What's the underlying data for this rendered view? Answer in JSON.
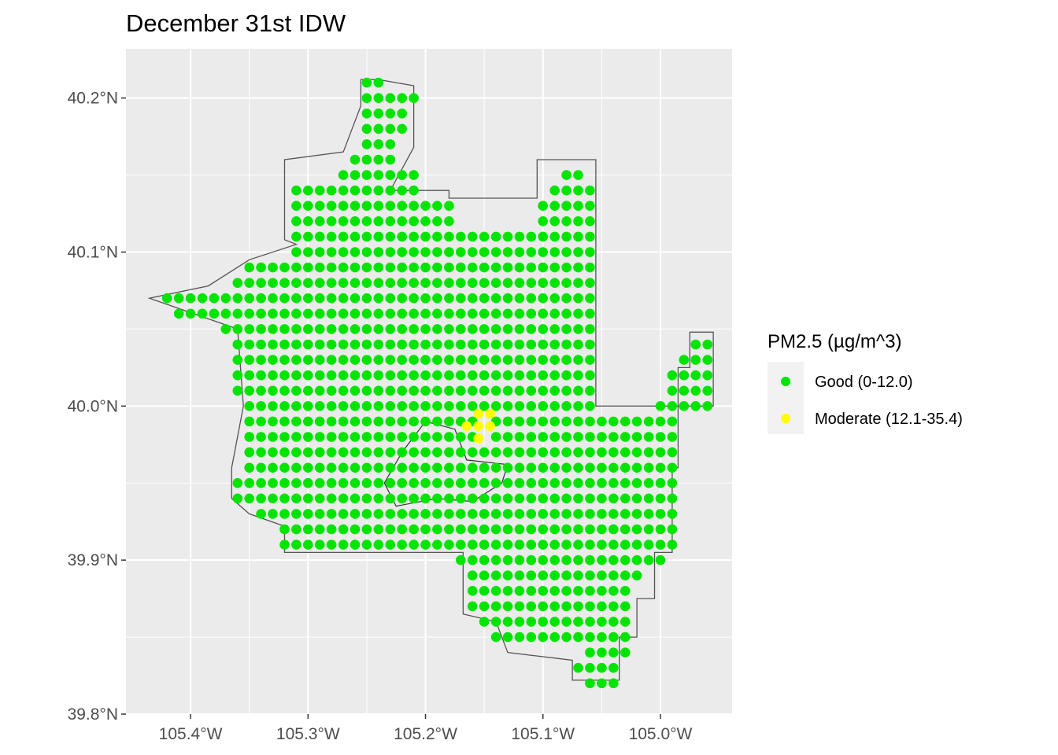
{
  "chart_data": {
    "type": "scatter",
    "title": "December 31st IDW",
    "xlabel": "",
    "ylabel": "",
    "xlim": [
      -105.455,
      -104.939
    ],
    "ylim": [
      39.8,
      40.232
    ],
    "x_ticks": [
      {
        "value": -105.4,
        "label": "105.4°W"
      },
      {
        "value": -105.3,
        "label": "105.3°W"
      },
      {
        "value": -105.2,
        "label": "105.2°W"
      },
      {
        "value": -105.1,
        "label": "105.1°W"
      },
      {
        "value": -105.0,
        "label": "105.0°W"
      }
    ],
    "y_ticks": [
      {
        "value": 39.8,
        "label": "39.8°N"
      },
      {
        "value": 39.9,
        "label": "39.9°N"
      },
      {
        "value": 40.0,
        "label": "40.0°N"
      },
      {
        "value": 40.1,
        "label": "40.1°N"
      },
      {
        "value": 40.2,
        "label": "40.2°N"
      }
    ],
    "grid": true,
    "grid_spacing_deg": 0.01,
    "legend": {
      "title": "PM2.5 (µg/m^3)",
      "position": "right",
      "entries": [
        {
          "label": "Good (0-12.0)",
          "color": "#00e400"
        },
        {
          "label": "Moderate (12.1-35.4)",
          "color": "#ffff00"
        }
      ]
    },
    "series": [
      {
        "name": "Good (0-12.0)",
        "color": "#00e400",
        "rows": [
          {
            "lat": 40.21,
            "lon_ranges": [
              [
                -105.25,
                -105.24
              ]
            ]
          },
          {
            "lat": 40.2,
            "lon_ranges": [
              [
                -105.25,
                -105.21
              ]
            ]
          },
          {
            "lat": 40.19,
            "lon_ranges": [
              [
                -105.25,
                -105.22
              ]
            ]
          },
          {
            "lat": 40.18,
            "lon_ranges": [
              [
                -105.25,
                -105.22
              ]
            ]
          },
          {
            "lat": 40.17,
            "lon_ranges": [
              [
                -105.25,
                -105.23
              ]
            ]
          },
          {
            "lat": 40.16,
            "lon_ranges": [
              [
                -105.26,
                -105.23
              ]
            ]
          },
          {
            "lat": 40.15,
            "lon_ranges": [
              [
                -105.27,
                -105.21
              ],
              [
                -105.08,
                -105.07
              ]
            ]
          },
          {
            "lat": 40.14,
            "lon_ranges": [
              [
                -105.31,
                -105.21
              ],
              [
                -105.09,
                -105.06
              ]
            ]
          },
          {
            "lat": 40.13,
            "lon_ranges": [
              [
                -105.31,
                -105.18
              ],
              [
                -105.1,
                -105.06
              ]
            ]
          },
          {
            "lat": 40.12,
            "lon_ranges": [
              [
                -105.31,
                -105.18
              ],
              [
                -105.1,
                -105.06
              ]
            ]
          },
          {
            "lat": 40.11,
            "lon_ranges": [
              [
                -105.31,
                -105.06
              ]
            ]
          },
          {
            "lat": 40.1,
            "lon_ranges": [
              [
                -105.31,
                -105.06
              ]
            ]
          },
          {
            "lat": 40.09,
            "lon_ranges": [
              [
                -105.35,
                -105.06
              ]
            ]
          },
          {
            "lat": 40.08,
            "lon_ranges": [
              [
                -105.36,
                -105.06
              ]
            ]
          },
          {
            "lat": 40.07,
            "lon_ranges": [
              [
                -105.42,
                -105.06
              ]
            ]
          },
          {
            "lat": 40.06,
            "lon_ranges": [
              [
                -105.41,
                -105.06
              ]
            ]
          },
          {
            "lat": 40.05,
            "lon_ranges": [
              [
                -105.37,
                -105.06
              ]
            ]
          },
          {
            "lat": 40.04,
            "lon_ranges": [
              [
                -105.36,
                -105.06
              ],
              [
                -104.97,
                -104.96
              ]
            ]
          },
          {
            "lat": 40.03,
            "lon_ranges": [
              [
                -105.36,
                -105.06
              ],
              [
                -104.98,
                -104.96
              ]
            ]
          },
          {
            "lat": 40.02,
            "lon_ranges": [
              [
                -105.36,
                -105.06
              ],
              [
                -104.99,
                -104.96
              ]
            ]
          },
          {
            "lat": 40.01,
            "lon_ranges": [
              [
                -105.36,
                -105.06
              ],
              [
                -104.99,
                -104.96
              ]
            ]
          },
          {
            "lat": 40.0,
            "lon_ranges": [
              [
                -105.35,
                -105.06
              ],
              [
                -105.0,
                -104.96
              ]
            ]
          },
          {
            "lat": 39.99,
            "lon_ranges": [
              [
                -105.35,
                -105.16
              ],
              [
                -105.14,
                -104.99
              ]
            ]
          },
          {
            "lat": 39.98,
            "lon_ranges": [
              [
                -105.35,
                -105.16
              ],
              [
                -105.14,
                -104.99
              ]
            ]
          },
          {
            "lat": 39.97,
            "lon_ranges": [
              [
                -105.35,
                -104.99
              ]
            ]
          },
          {
            "lat": 39.96,
            "lon_ranges": [
              [
                -105.35,
                -104.99
              ]
            ]
          },
          {
            "lat": 39.95,
            "lon_ranges": [
              [
                -105.36,
                -104.99
              ]
            ]
          },
          {
            "lat": 39.94,
            "lon_ranges": [
              [
                -105.36,
                -104.99
              ]
            ]
          },
          {
            "lat": 39.93,
            "lon_ranges": [
              [
                -105.34,
                -104.99
              ]
            ]
          },
          {
            "lat": 39.92,
            "lon_ranges": [
              [
                -105.32,
                -104.99
              ]
            ]
          },
          {
            "lat": 39.91,
            "lon_ranges": [
              [
                -105.32,
                -104.99
              ]
            ]
          },
          {
            "lat": 39.9,
            "lon_ranges": [
              [
                -105.17,
                -105.0
              ]
            ]
          },
          {
            "lat": 39.89,
            "lon_ranges": [
              [
                -105.16,
                -105.02
              ]
            ]
          },
          {
            "lat": 39.88,
            "lon_ranges": [
              [
                -105.16,
                -105.03
              ]
            ]
          },
          {
            "lat": 39.87,
            "lon_ranges": [
              [
                -105.16,
                -105.03
              ]
            ]
          },
          {
            "lat": 39.86,
            "lon_ranges": [
              [
                -105.15,
                -105.03
              ]
            ]
          },
          {
            "lat": 39.85,
            "lon_ranges": [
              [
                -105.14,
                -105.03
              ]
            ]
          },
          {
            "lat": 39.84,
            "lon_ranges": [
              [
                -105.06,
                -105.03
              ]
            ]
          },
          {
            "lat": 39.83,
            "lon_ranges": [
              [
                -105.07,
                -105.04
              ]
            ]
          },
          {
            "lat": 39.82,
            "lon_ranges": [
              [
                -105.06,
                -105.04
              ]
            ]
          }
        ]
      },
      {
        "name": "Moderate (12.1-35.4)",
        "color": "#ffff00",
        "points": [
          [
            -105.155,
            39.995
          ],
          [
            -105.145,
            39.995
          ],
          [
            -105.165,
            39.987
          ],
          [
            -105.155,
            39.987
          ],
          [
            -105.145,
            39.987
          ],
          [
            -105.155,
            39.979
          ]
        ]
      }
    ],
    "map_outline": [
      [
        -105.24,
        40.212
      ],
      [
        -105.21,
        40.208
      ],
      [
        -105.21,
        40.168
      ],
      [
        -105.23,
        40.14
      ],
      [
        -105.18,
        40.14
      ],
      [
        -105.18,
        40.135
      ],
      [
        -105.105,
        40.135
      ],
      [
        -105.105,
        40.16
      ],
      [
        -105.055,
        40.16
      ],
      [
        -105.055,
        40.0
      ],
      [
        -104.985,
        40.0
      ],
      [
        -104.985,
        40.025
      ],
      [
        -104.975,
        40.025
      ],
      [
        -104.975,
        40.048
      ],
      [
        -104.955,
        40.048
      ],
      [
        -104.955,
        40.0
      ],
      [
        -104.985,
        40.0
      ],
      [
        -104.985,
        39.96
      ],
      [
        -104.99,
        39.96
      ],
      [
        -104.99,
        39.905
      ],
      [
        -105.005,
        39.905
      ],
      [
        -105.005,
        39.875
      ],
      [
        -105.02,
        39.875
      ],
      [
        -105.02,
        39.85
      ],
      [
        -105.035,
        39.85
      ],
      [
        -105.035,
        39.822
      ],
      [
        -105.075,
        39.822
      ],
      [
        -105.075,
        39.835
      ],
      [
        -105.13,
        39.84
      ],
      [
        -105.14,
        39.86
      ],
      [
        -105.168,
        39.865
      ],
      [
        -105.168,
        39.905
      ],
      [
        -105.32,
        39.905
      ],
      [
        -105.32,
        39.922
      ],
      [
        -105.35,
        39.93
      ],
      [
        -105.365,
        39.94
      ],
      [
        -105.365,
        39.96
      ],
      [
        -105.355,
        40.0
      ],
      [
        -105.36,
        40.05
      ],
      [
        -105.39,
        40.058
      ],
      [
        -105.435,
        40.07
      ],
      [
        -105.385,
        40.078
      ],
      [
        -105.35,
        40.095
      ],
      [
        -105.31,
        40.105
      ],
      [
        -105.32,
        40.108
      ],
      [
        -105.32,
        40.16
      ],
      [
        -105.27,
        40.165
      ],
      [
        -105.255,
        40.195
      ],
      [
        -105.255,
        40.212
      ],
      [
        -105.24,
        40.212
      ]
    ],
    "campus_outline": [
      [
        -105.2,
        39.99
      ],
      [
        -105.175,
        39.985
      ],
      [
        -105.165,
        39.965
      ],
      [
        -105.13,
        39.962
      ],
      [
        -105.135,
        39.95
      ],
      [
        -105.16,
        39.938
      ],
      [
        -105.19,
        39.94
      ],
      [
        -105.225,
        39.935
      ],
      [
        -105.235,
        39.95
      ],
      [
        -105.22,
        39.97
      ],
      [
        -105.2,
        39.99
      ]
    ]
  }
}
